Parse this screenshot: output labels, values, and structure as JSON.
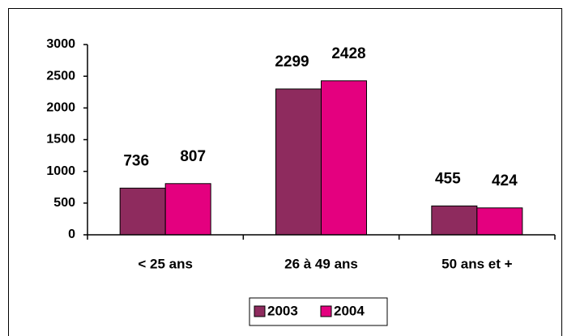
{
  "chart_data": {
    "type": "bar",
    "categories": [
      "< 25 ans",
      "26 à 49 ans",
      "50 ans et +"
    ],
    "series": [
      {
        "name": "2003",
        "color": "#8e2b5e",
        "values": [
          736,
          2299,
          455
        ]
      },
      {
        "name": "2004",
        "color": "#e4007f",
        "values": [
          807,
          2428,
          424
        ]
      }
    ],
    "ylim": [
      0,
      3000
    ],
    "yticks": [
      0,
      500,
      1000,
      1500,
      2000,
      2500,
      3000
    ],
    "grid": false,
    "legend": "bottom"
  }
}
